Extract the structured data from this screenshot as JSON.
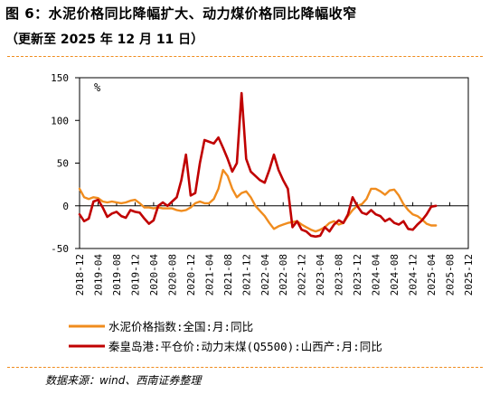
{
  "figure": {
    "title": "图 6：水泥价格同比降幅扩大、动力煤价格同比降幅收窄",
    "subtitle": "（更新至 2025 年 12 月 11 日）",
    "source": "数据来源：wind、西南证券整理"
  },
  "chart_data": {
    "type": "line",
    "unit_label": "%",
    "ylim": [
      -50,
      150
    ],
    "yticks": [
      -50,
      0,
      50,
      100,
      150
    ],
    "x_tick_labels": [
      "2018-12",
      "2019-04",
      "2019-08",
      "2019-12",
      "2020-04",
      "2020-08",
      "2020-12",
      "2021-04",
      "2021-08",
      "2021-12",
      "2022-04",
      "2022-08",
      "2022-12",
      "2023-04",
      "2023-08",
      "2023-12",
      "2024-04",
      "2024-08",
      "2024-12",
      "2025-04",
      "2025-08",
      "2025-12"
    ],
    "legend_position": "bottom-left",
    "grid": false,
    "series": [
      {
        "name": "水泥价格指数:全国:月:同比",
        "color": "#f08c1e",
        "values": [
          {
            "x": 0,
            "y": 20
          },
          {
            "x": 1,
            "y": 10
          },
          {
            "x": 2,
            "y": 8
          },
          {
            "x": 3,
            "y": 10
          },
          {
            "x": 4,
            "y": 9
          },
          {
            "x": 5,
            "y": 5
          },
          {
            "x": 6,
            "y": 4
          },
          {
            "x": 7,
            "y": 5
          },
          {
            "x": 8,
            "y": 4
          },
          {
            "x": 9,
            "y": 3
          },
          {
            "x": 10,
            "y": 4
          },
          {
            "x": 11,
            "y": 6
          },
          {
            "x": 12,
            "y": 7
          },
          {
            "x": 13,
            "y": 3
          },
          {
            "x": 14,
            "y": -2
          },
          {
            "x": 15,
            "y": -2
          },
          {
            "x": 16,
            "y": -3
          },
          {
            "x": 17,
            "y": -2
          },
          {
            "x": 18,
            "y": -3
          },
          {
            "x": 20,
            "y": -3
          },
          {
            "x": 21,
            "y": -5
          },
          {
            "x": 22,
            "y": -6
          },
          {
            "x": 23,
            "y": -5
          },
          {
            "x": 24,
            "y": -2
          },
          {
            "x": 25,
            "y": 3
          },
          {
            "x": 26,
            "y": 5
          },
          {
            "x": 27,
            "y": 3
          },
          {
            "x": 28,
            "y": 3
          },
          {
            "x": 29,
            "y": 8
          },
          {
            "x": 30,
            "y": 20
          },
          {
            "x": 31,
            "y": 42
          },
          {
            "x": 32,
            "y": 35
          },
          {
            "x": 33,
            "y": 20
          },
          {
            "x": 34,
            "y": 10
          },
          {
            "x": 35,
            "y": 15
          },
          {
            "x": 36,
            "y": 17
          },
          {
            "x": 37,
            "y": 10
          },
          {
            "x": 38,
            "y": 0
          },
          {
            "x": 39,
            "y": -6
          },
          {
            "x": 40,
            "y": -12
          },
          {
            "x": 41,
            "y": -20
          },
          {
            "x": 42,
            "y": -27
          },
          {
            "x": 43,
            "y": -24
          },
          {
            "x": 44,
            "y": -22
          },
          {
            "x": 45,
            "y": -20
          },
          {
            "x": 46,
            "y": -19
          },
          {
            "x": 47,
            "y": -18
          },
          {
            "x": 48,
            "y": -22
          },
          {
            "x": 49,
            "y": -25
          },
          {
            "x": 50,
            "y": -28
          },
          {
            "x": 51,
            "y": -30
          },
          {
            "x": 52,
            "y": -28
          },
          {
            "x": 53,
            "y": -25
          },
          {
            "x": 54,
            "y": -20
          },
          {
            "x": 55,
            "y": -18
          },
          {
            "x": 56,
            "y": -22
          },
          {
            "x": 57,
            "y": -20
          },
          {
            "x": 58,
            "y": -12
          },
          {
            "x": 59,
            "y": -5
          },
          {
            "x": 60,
            "y": 0
          },
          {
            "x": 61,
            "y": 2
          },
          {
            "x": 62,
            "y": 8
          },
          {
            "x": 63,
            "y": 20
          },
          {
            "x": 64,
            "y": 20
          },
          {
            "x": 65,
            "y": 17
          },
          {
            "x": 66,
            "y": 13
          },
          {
            "x": 67,
            "y": 18
          },
          {
            "x": 68,
            "y": 19
          },
          {
            "x": 69,
            "y": 12
          },
          {
            "x": 70,
            "y": 2
          },
          {
            "x": 71,
            "y": -5
          },
          {
            "x": 72,
            "y": -10
          },
          {
            "x": 73,
            "y": -12
          },
          {
            "x": 74,
            "y": -16
          },
          {
            "x": 75,
            "y": -21
          },
          {
            "x": 76,
            "y": -23
          },
          {
            "x": 77,
            "y": -23
          }
        ]
      },
      {
        "name": "秦皇岛港:平仓价:动力末煤(Q5500):山西产:月:同比",
        "color": "#c00000",
        "values": [
          {
            "x": 0,
            "y": -10
          },
          {
            "x": 1,
            "y": -18
          },
          {
            "x": 2,
            "y": -15
          },
          {
            "x": 3,
            "y": 5
          },
          {
            "x": 4,
            "y": 7
          },
          {
            "x": 5,
            "y": -2
          },
          {
            "x": 6,
            "y": -13
          },
          {
            "x": 7,
            "y": -9
          },
          {
            "x": 8,
            "y": -7
          },
          {
            "x": 9,
            "y": -12
          },
          {
            "x": 10,
            "y": -14
          },
          {
            "x": 11,
            "y": -5
          },
          {
            "x": 12,
            "y": -7
          },
          {
            "x": 13,
            "y": -8
          },
          {
            "x": 14,
            "y": -15
          },
          {
            "x": 15,
            "y": -21
          },
          {
            "x": 16,
            "y": -17
          },
          {
            "x": 17,
            "y": 0
          },
          {
            "x": 18,
            "y": 4
          },
          {
            "x": 19,
            "y": 0
          },
          {
            "x": 20,
            "y": 5
          },
          {
            "x": 21,
            "y": 10
          },
          {
            "x": 22,
            "y": 30
          },
          {
            "x": 23,
            "y": 60
          },
          {
            "x": 24,
            "y": 12
          },
          {
            "x": 25,
            "y": 15
          },
          {
            "x": 26,
            "y": 50
          },
          {
            "x": 27,
            "y": 77
          },
          {
            "x": 28,
            "y": 75
          },
          {
            "x": 29,
            "y": 73
          },
          {
            "x": 30,
            "y": 80
          },
          {
            "x": 31,
            "y": 68
          },
          {
            "x": 32,
            "y": 55
          },
          {
            "x": 33,
            "y": 40
          },
          {
            "x": 34,
            "y": 50
          },
          {
            "x": 35,
            "y": 132
          },
          {
            "x": 36,
            "y": 55
          },
          {
            "x": 37,
            "y": 40
          },
          {
            "x": 38,
            "y": 35
          },
          {
            "x": 39,
            "y": 30
          },
          {
            "x": 40,
            "y": 27
          },
          {
            "x": 41,
            "y": 42
          },
          {
            "x": 42,
            "y": 60
          },
          {
            "x": 43,
            "y": 42
          },
          {
            "x": 44,
            "y": 30
          },
          {
            "x": 45,
            "y": 20
          },
          {
            "x": 46,
            "y": -25
          },
          {
            "x": 47,
            "y": -18
          },
          {
            "x": 48,
            "y": -28
          },
          {
            "x": 49,
            "y": -30
          },
          {
            "x": 50,
            "y": -35
          },
          {
            "x": 51,
            "y": -36
          },
          {
            "x": 52,
            "y": -35
          },
          {
            "x": 53,
            "y": -25
          },
          {
            "x": 54,
            "y": -30
          },
          {
            "x": 55,
            "y": -22
          },
          {
            "x": 56,
            "y": -17
          },
          {
            "x": 57,
            "y": -20
          },
          {
            "x": 58,
            "y": -10
          },
          {
            "x": 59,
            "y": 10
          },
          {
            "x": 60,
            "y": 0
          },
          {
            "x": 61,
            "y": -8
          },
          {
            "x": 62,
            "y": -10
          },
          {
            "x": 63,
            "y": -5
          },
          {
            "x": 64,
            "y": -10
          },
          {
            "x": 65,
            "y": -12
          },
          {
            "x": 66,
            "y": -18
          },
          {
            "x": 67,
            "y": -15
          },
          {
            "x": 68,
            "y": -20
          },
          {
            "x": 69,
            "y": -22
          },
          {
            "x": 70,
            "y": -18
          },
          {
            "x": 71,
            "y": -27
          },
          {
            "x": 72,
            "y": -28
          },
          {
            "x": 73,
            "y": -22
          },
          {
            "x": 74,
            "y": -17
          },
          {
            "x": 75,
            "y": -10
          },
          {
            "x": 76,
            "y": -1
          },
          {
            "x": 77,
            "y": 0
          }
        ]
      }
    ]
  }
}
